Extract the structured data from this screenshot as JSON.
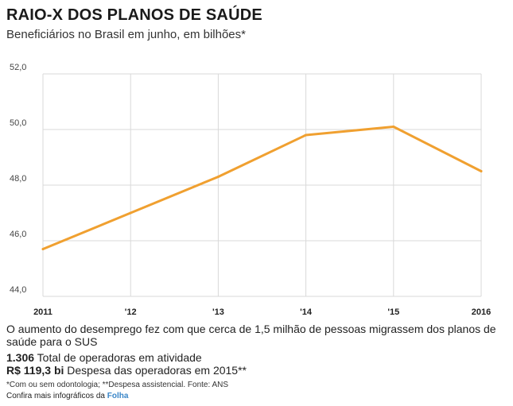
{
  "header": {
    "title": "RAIO-X DOS PLANOS DE SAÚDE",
    "subtitle": "Beneficiários no Brasil em junho, em bilhões*"
  },
  "colors": {
    "line": "#f0a030",
    "grid": "#d9d9d9",
    "brand": "#3a86c8"
  },
  "chart_data": {
    "type": "line",
    "title": "RAIO-X DOS PLANOS DE SAÚDE",
    "subtitle": "Beneficiários no Brasil em junho, em bilhões*",
    "categories": [
      "2011",
      "'12",
      "'13",
      "'14",
      "'15",
      "2016"
    ],
    "values": [
      45.7,
      47.0,
      48.3,
      49.8,
      50.1,
      48.5
    ],
    "ylim": [
      44.0,
      52.0
    ],
    "yticks": [
      "44,0",
      "46,0",
      "48,0",
      "50,0",
      "52,0"
    ],
    "ytick_values": [
      44,
      46,
      48,
      50,
      52
    ],
    "grid": true,
    "legend": "none"
  },
  "notes": {
    "description": "O aumento do desemprego fez com que cerca de 1,5 milhão de pessoas migrassem dos planos de saúde para o SUS",
    "stat1_value": "1.306",
    "stat1_label": " Total de operadoras em atividade",
    "stat2_value": "R$ 119,3 bi",
    "stat2_label": " Despesa das operadoras em 2015**",
    "footnote": "*Com ou sem odontologia; **Despesa assistencial. Fonte: ANS",
    "credit_prefix": "Confira mais infográficos da ",
    "credit_brand": "Folha"
  }
}
